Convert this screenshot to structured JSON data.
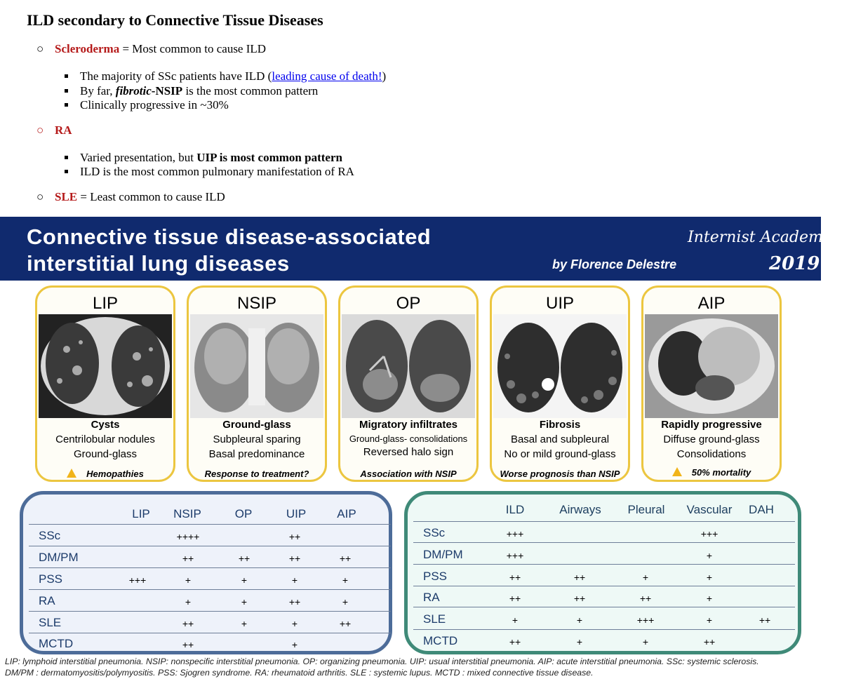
{
  "notes": {
    "title": "ILD secondary to Connective Tissue Diseases",
    "scleroderma": {
      "name": "Scleroderma",
      "rest": " = Most common to cause ILD",
      "b1_pre": "The majority of SSc patients have ILD (",
      "b1_link": "leading cause of death!",
      "b1_post": ")",
      "b2_pre": "By far, ",
      "b2_italic": "fibrotic",
      "b2_bold": "-NSIP",
      "b2_post": " is the most common pattern",
      "b3": "Clinically progressive in ~30%"
    },
    "ra": {
      "name": "RA",
      "b1_pre": "Varied presentation, but ",
      "b1_bold": "UIP is most common pattern",
      "b2": "ILD is the most common pulmonary manifestation of RA"
    },
    "sle": {
      "name": "SLE",
      "rest": " = Least common to cause ILD"
    }
  },
  "banner": {
    "title_line1": "Connective tissue disease-associated",
    "title_line2": "interstitial lung diseases",
    "academy": "Internist Academy",
    "author": "by Florence Delestre",
    "year": "2019"
  },
  "cards": [
    {
      "title": "LIP",
      "line1": "Cysts",
      "line2": "Centrilobular nodules",
      "line3": "Ground-glass",
      "footer": "Hemopathies",
      "warning": true
    },
    {
      "title": "NSIP",
      "line1": "Ground-glass",
      "line2": "Subpleural sparing",
      "line3": "Basal predominance",
      "footer": "Response to treatment?",
      "warning": false
    },
    {
      "title": "OP",
      "line1": "Migratory infiltrates",
      "line2": "Ground-glass- consolidations",
      "line3": "Reversed halo sign",
      "footer": "Association with NSIP",
      "warning": false
    },
    {
      "title": "UIP",
      "line1": "Fibrosis",
      "line2": "Basal and subpleural",
      "line3": "No or mild ground-glass",
      "footer": "Worse prognosis than NSIP",
      "warning": false
    },
    {
      "title": "AIP",
      "line1": "Rapidly progressive",
      "line2": "Diffuse ground-glass",
      "line3": "Consolidations",
      "footer": "50% mortality",
      "warning": true
    }
  ],
  "icons": {
    "warning": "warning-triangle-icon"
  },
  "table_left": {
    "headers": [
      "LIP",
      "NSIP",
      "OP",
      "UIP",
      "AIP"
    ],
    "rows": [
      {
        "label": "SSc",
        "cells": [
          "",
          "++++",
          "",
          "++",
          ""
        ]
      },
      {
        "label": "DM/PM",
        "cells": [
          "",
          "++",
          "++",
          "++",
          "++"
        ]
      },
      {
        "label": "PSS",
        "cells": [
          "+++",
          "+",
          "+",
          "+",
          "+"
        ]
      },
      {
        "label": "RA",
        "cells": [
          "",
          "+",
          "+",
          "++",
          "+"
        ]
      },
      {
        "label": "SLE",
        "cells": [
          "",
          "++",
          "+",
          "+",
          "++"
        ]
      },
      {
        "label": "MCTD",
        "cells": [
          "",
          "++",
          "",
          "+",
          ""
        ]
      }
    ]
  },
  "table_right": {
    "headers": [
      "ILD",
      "Airways",
      "Pleural",
      "Vascular",
      "DAH"
    ],
    "rows": [
      {
        "label": "SSc",
        "cells": [
          "+++",
          "",
          "",
          "+++",
          ""
        ]
      },
      {
        "label": "DM/PM",
        "cells": [
          "+++",
          "",
          "",
          "+",
          ""
        ]
      },
      {
        "label": "PSS",
        "cells": [
          "++",
          "++",
          "+",
          "+",
          ""
        ]
      },
      {
        "label": "RA",
        "cells": [
          "++",
          "++",
          "++",
          "+",
          ""
        ]
      },
      {
        "label": "SLE",
        "cells": [
          "+",
          "+",
          "+++",
          "+",
          "++"
        ]
      },
      {
        "label": "MCTD",
        "cells": [
          "++",
          "+",
          "+",
          "++",
          ""
        ]
      }
    ]
  },
  "footer": {
    "line1": "LIP: lymphoid interstitial pneumonia. NSIP: nonspecific interstitial pneumonia. OP: organizing pneumonia. UIP: usual interstitial pneumonia. AIP: acute interstitial pneumonia. SSc: systemic sclerosis.",
    "line2": "DM/PM : dermatomyositis/polymyositis. PSS: Sjogren syndrome. RA: rheumatoid arthritis. SLE : systemic lupus. MCTD : mixed connective tissue disease."
  },
  "colors": {
    "accent_red": "#b51a1a",
    "banner_navy": "#102a6e",
    "card_border": "#ecc640",
    "left_table_border": "#4d6c99",
    "right_table_border": "#3f8a78"
  }
}
